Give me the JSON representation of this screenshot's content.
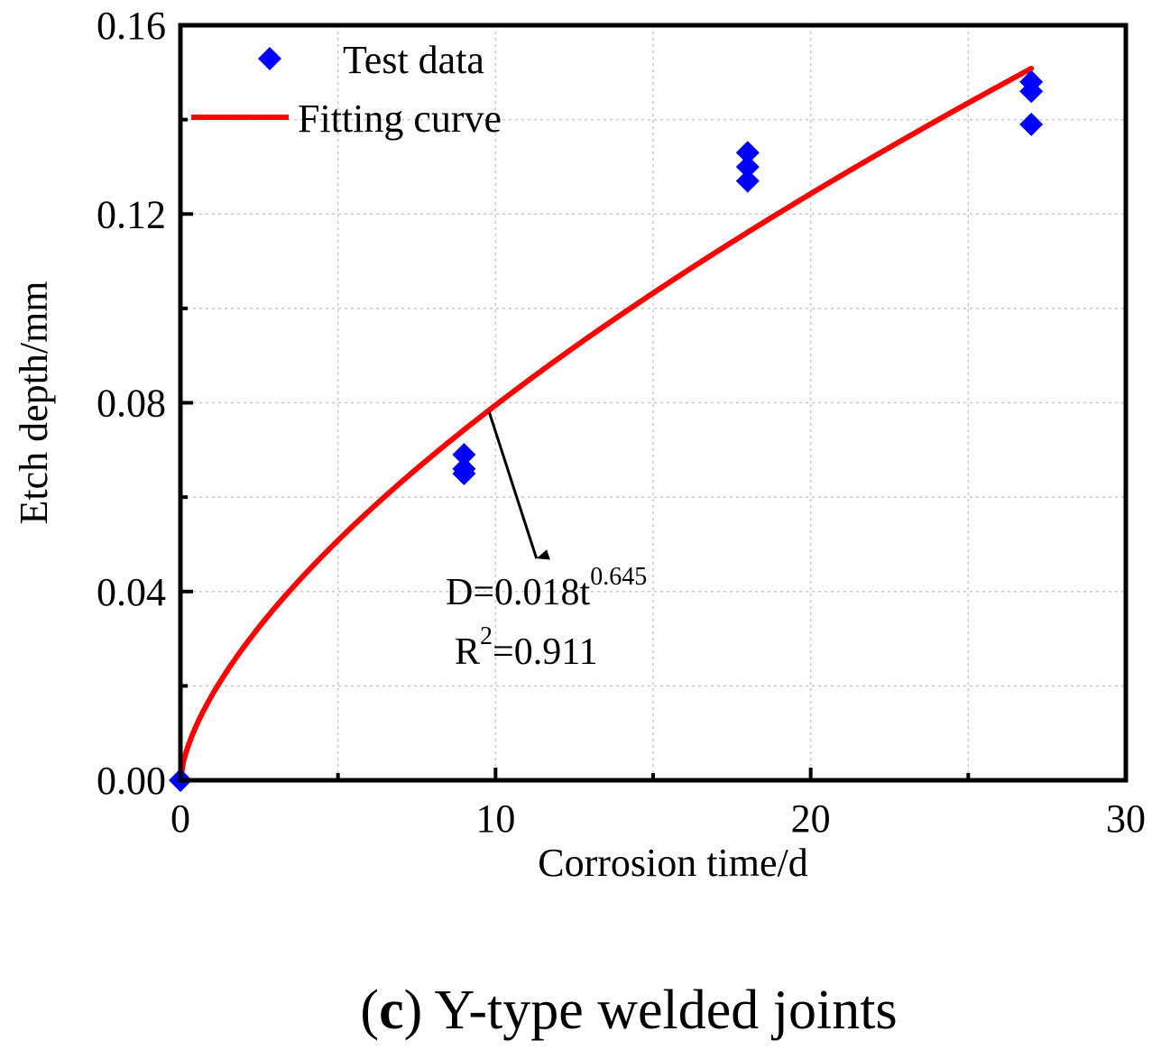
{
  "chart_data": {
    "type": "scatter",
    "title": "",
    "xlabel": "Corrosion time/d",
    "ylabel": "Etch depth/mm",
    "xlim": [
      0,
      30
    ],
    "ylim": [
      0,
      0.16
    ],
    "x_ticks": [
      0,
      10,
      20,
      30
    ],
    "x_tick_labels": [
      "0",
      "10",
      "20",
      "30"
    ],
    "y_ticks": [
      0,
      0.04,
      0.08,
      0.12,
      0.16
    ],
    "y_tick_labels": [
      "0.00",
      "0.04",
      "0.08",
      "0.12",
      "0.16"
    ],
    "grid": true,
    "legend_position": "top-left",
    "series": [
      {
        "name": "Test data",
        "kind": "scatter",
        "marker": "diamond",
        "color": "#0000ff",
        "x": [
          0,
          9,
          9,
          9,
          18,
          18,
          18,
          27,
          27,
          27
        ],
        "y": [
          0,
          0.069,
          0.066,
          0.065,
          0.133,
          0.13,
          0.127,
          0.148,
          0.146,
          0.139
        ]
      },
      {
        "name": "Fitting curve",
        "kind": "line",
        "color": "#ff0000",
        "coefficient": 0.018,
        "exponent": 0.645,
        "x_range": [
          0,
          27
        ]
      }
    ],
    "annotation": {
      "equation_prefix": "D=0.018t",
      "equation_exponent": "0.645",
      "r2_prefix": "R",
      "r2_sup": "2",
      "r2_suffix": "=0.911",
      "arrow_from": [
        9.8,
        0.078
      ],
      "arrow_to": [
        11.3,
        0.047
      ],
      "color": "#000000"
    }
  },
  "caption": {
    "open_paren": "(",
    "letter": "c",
    "rest": ") Y-type welded joints"
  }
}
